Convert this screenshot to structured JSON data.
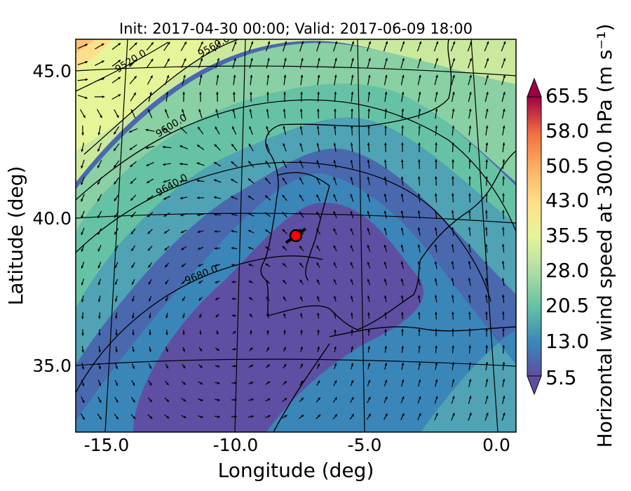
{
  "title": "Init: 2017-04-30 00:00; Valid: 2017-06-09 18:00",
  "xlabel": "Longitude (deg)",
  "ylabel": "Latitude (deg)",
  "x_ticks": [
    "-15.0",
    "-10.0",
    "-5.0",
    "0.0"
  ],
  "y_ticks": [
    "45.0",
    "40.0",
    "35.0"
  ],
  "colorbar": {
    "label": "Horizontal wind speed at 300.0 hPa (m s⁻¹)",
    "ticks": [
      "65.5",
      "58.0",
      "50.5",
      "43.0",
      "35.5",
      "28.0",
      "20.5",
      "13.0",
      "5.5"
    ],
    "min": 5.5,
    "max": 65.5,
    "colors": [
      "#5e4fa2",
      "#4a68ae",
      "#3a86b9",
      "#4fa3b4",
      "#66c2a5",
      "#89d0a4",
      "#abdda4",
      "#cbe99d",
      "#e6f598",
      "#f3f9ac",
      "#fee08b",
      "#fdc374",
      "#fdae61",
      "#f88d52",
      "#f46d43",
      "#e0554a",
      "#d53e4f",
      "#b5254c",
      "#9e0142"
    ]
  },
  "contour_labels": [
    "9520.0",
    "9560.0",
    "9600.0",
    "9640.0",
    "9680.0"
  ],
  "marker": {
    "lon": -7.7,
    "lat": 39.3,
    "color": "#ff0000"
  },
  "chart_data": {
    "type": "heatmap",
    "title": "Init: 2017-04-30 00:00; Valid: 2017-06-09 18:00",
    "xlabel": "Longitude (deg)",
    "ylabel": "Latitude (deg)",
    "xlim": [
      -16,
      0.2
    ],
    "ylim": [
      32.8,
      46
    ],
    "variable": "Horizontal wind speed at 300.0 hPa",
    "units": "m s-1",
    "colorbar_range": [
      5.5,
      65.5
    ],
    "geopotential_contours": [
      9520.0,
      9560.0,
      9600.0,
      9640.0,
      9680.0
    ],
    "marker_point": {
      "lon": -7.7,
      "lat": 39.3
    }
  }
}
